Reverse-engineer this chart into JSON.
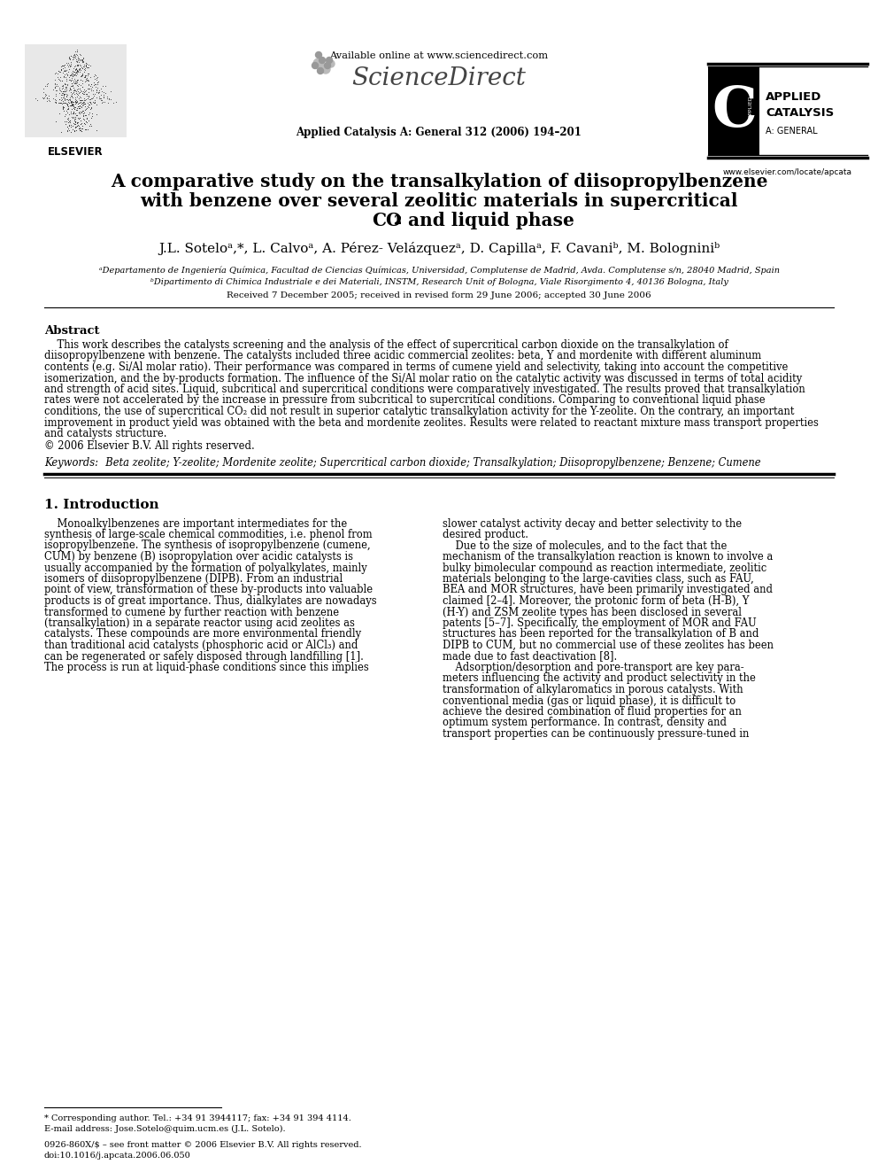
{
  "bg_color": "#ffffff",
  "title_line1": "A comparative study on the transalkylation of diisopropylbenzene",
  "title_line2": "with benzene over several zeolitic materials in supercritical",
  "title_line3_pre": "CO",
  "title_line3_post": " and liquid phase",
  "journal_info": "Applied Catalysis A: General 312 (2006) 194–201",
  "available_online": "Available online at www.sciencedirect.com",
  "elsevier_url": "www.elsevier.com/locate/apcata",
  "authors_line": "J.L. Soteloᵃ,*, L. Calvoᵃ, A. Pérez- Velázquezᵃ, D. Capillaᵃ, F. Cavaniᵇ, M. Bologniniᵇ",
  "affil_a": "ᵃDepartamento de Ingeniería Química, Facultad de Ciencias Químicas, Universidad, Complutense de Madrid, Avda. Complutense s/n, 28040 Madrid, Spain",
  "affil_b": "ᵇDipartimento di Chimica Industriale e dei Materiali, INSTM, Research Unit of Bologna, Viale Risorgimento 4, 40136 Bologna, Italy",
  "received": "Received 7 December 2005; received in revised form 29 June 2006; accepted 30 June 2006",
  "abstract_title": "Abstract",
  "copyright": "© 2006 Elsevier B.V. All rights reserved.",
  "keywords_label": "Keywords:",
  "keywords_text": "  Beta zeolite; Y-zeolite; Mordenite zeolite; Supercritical carbon dioxide; Transalkylation; Diisopropylbenzene; Benzene; Cumene",
  "section1_title": "1. Introduction",
  "footnote1": "* Corresponding author. Tel.: +34 91 3944117; fax: +34 91 394 4114.",
  "footnote2": "E-mail address: Jose.Sotelo@quim.ucm.es (J.L. Sotelo).",
  "footnote3": "0926-860X/$ – see front matter © 2006 Elsevier B.V. All rights reserved.",
  "footnote4": "doi:10.1016/j.apcata.2006.06.050",
  "abstract_lines": [
    "    This work describes the catalysts screening and the analysis of the effect of supercritical carbon dioxide on the transalkylation of",
    "diisopropylbenzene with benzene. The catalysts included three acidic commercial zeolites: beta, Y and mordenite with different aluminum",
    "contents (e.g. Si/Al molar ratio). Their performance was compared in terms of cumene yield and selectivity, taking into account the competitive",
    "isomerization, and the by-products formation. The influence of the Si/Al molar ratio on the catalytic activity was discussed in terms of total acidity",
    "and strength of acid sites. Liquid, subcritical and supercritical conditions were comparatively investigated. The results proved that transalkylation",
    "rates were not accelerated by the increase in pressure from subcritical to supercritical conditions. Comparing to conventional liquid phase",
    "conditions, the use of supercritical CO₂ did not result in superior catalytic transalkylation activity for the Y-zeolite. On the contrary, an important",
    "improvement in product yield was obtained with the beta and mordenite zeolites. Results were related to reactant mixture mass transport properties",
    "and catalysts structure."
  ],
  "left_col_lines": [
    "    Monoalkylbenzenes are important intermediates for the",
    "synthesis of large-scale chemical commodities, i.e. phenol from",
    "isopropylbenzene. The synthesis of isopropylbenzene (cumene,",
    "CUM) by benzene (B) isopropylation over acidic catalysts is",
    "usually accompanied by the formation of polyalkylates, mainly",
    "isomers of diisopropylbenzene (DIPB). From an industrial",
    "point of view, transformation of these by-products into valuable",
    "products is of great importance. Thus, dialkylates are nowadays",
    "transformed to cumene by further reaction with benzene",
    "(transalkylation) in a separate reactor using acid zeolites as",
    "catalysts. These compounds are more environmental friendly",
    "than traditional acid catalysts (phosphoric acid or AlCl₃) and",
    "can be regenerated or safely disposed through landfilling [1].",
    "The process is run at liquid-phase conditions since this implies"
  ],
  "right_col_lines": [
    "slower catalyst activity decay and better selectivity to the",
    "desired product.",
    "    Due to the size of molecules, and to the fact that the",
    "mechanism of the transalkylation reaction is known to involve a",
    "bulky bimolecular compound as reaction intermediate, zeolitic",
    "materials belonging to the large-cavities class, such as FAU,",
    "BEA and MOR structures, have been primarily investigated and",
    "claimed [2–4]. Moreover, the protonic form of beta (H-B), Y",
    "(H-Y) and ZSM zeolite types has been disclosed in several",
    "patents [5–7]. Specifically, the employment of MOR and FAU",
    "structures has been reported for the transalkylation of B and",
    "DIPB to CUM, but no commercial use of these zeolites has been",
    "made due to fast deactivation [8].",
    "    Adsorption/desorption and pore-transport are key para-",
    "meters influencing the activity and product selectivity in the",
    "transformation of alkylaromatics in porous catalysts. With",
    "conventional media (gas or liquid phase), it is difficult to",
    "achieve the desired combination of fluid properties for an",
    "optimum system performance. In contrast, density and",
    "transport properties can be continuously pressure-tuned in"
  ]
}
